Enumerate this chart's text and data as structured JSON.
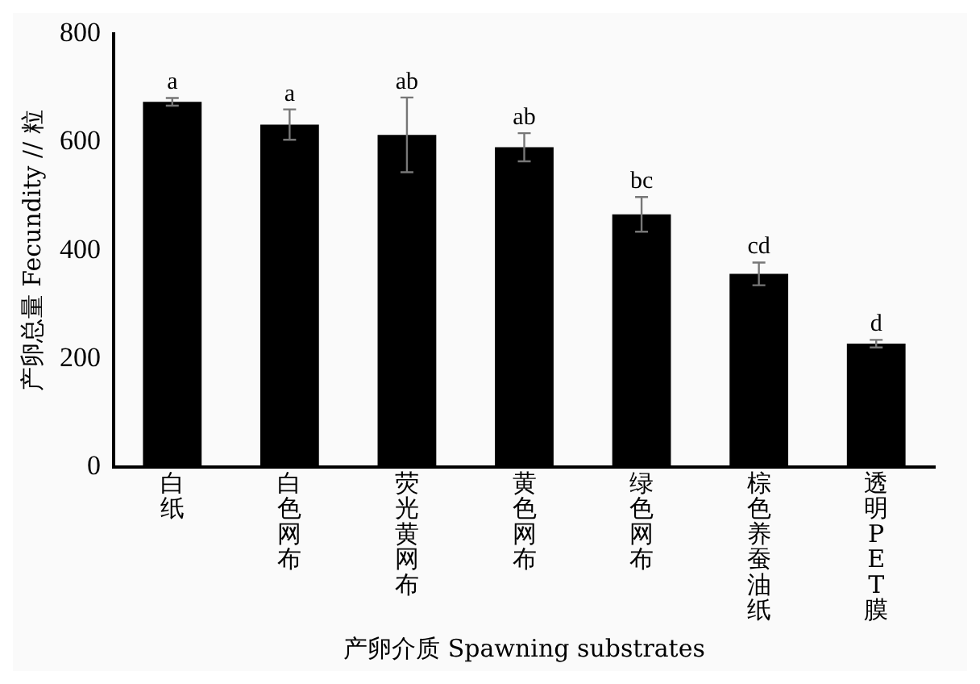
{
  "chart_data": {
    "type": "bar",
    "xlabel": "产卵介质 Spawning substrates",
    "ylabel": "产卵总量 Fecundity // 粒",
    "categories": [
      "白纸",
      "白色网布",
      "荧光黄网布",
      "黄色网布",
      "绿色网布",
      "棕色养蚕油纸",
      "透明PET膜"
    ],
    "values": [
      675,
      633,
      614,
      591,
      467,
      357,
      228
    ],
    "errors": [
      7,
      28,
      69,
      26,
      32,
      21,
      7
    ],
    "color": "#000000",
    "ylim": [
      0,
      800
    ],
    "yticks": [
      0,
      200,
      400,
      600,
      800
    ],
    "grid": false,
    "legend": false,
    "annotations": [
      {
        "text": "a",
        "x": "白纸",
        "y": 682
      },
      {
        "text": "a",
        "x": "白色网布",
        "y": 661
      },
      {
        "text": "ab",
        "x": "荧光黄网布",
        "y": 683
      },
      {
        "text": "ab",
        "x": "黄色网布",
        "y": 617
      },
      {
        "text": "bc",
        "x": "绿色网布",
        "y": 499
      },
      {
        "text": "cd",
        "x": "棕色养蚕油纸",
        "y": 378
      },
      {
        "text": "d",
        "x": "透明PET膜",
        "y": 235
      }
    ]
  }
}
